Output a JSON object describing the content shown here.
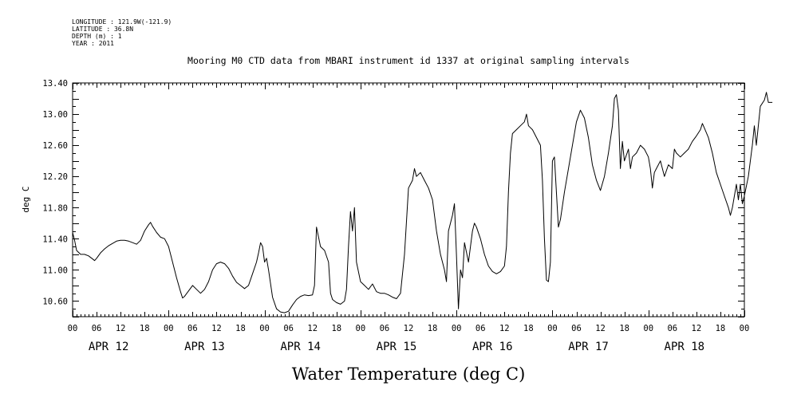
{
  "header": {
    "longitude": "LONGITUDE : 121.9W(-121.9)",
    "latitude": "LATITUDE : 36.8N",
    "depth": "DEPTH (m) : 1",
    "year": "YEAR : 2011"
  },
  "chart_data": {
    "type": "line",
    "title": "Mooring M0 CTD data from MBARI instrument id 1337 at original sampling intervals",
    "xlabel": "Water Temperature (deg C)",
    "ylabel": "deg C",
    "ylim": [
      10.4,
      13.4
    ],
    "yticks": [
      "10.60",
      "11.00",
      "11.40",
      "11.80",
      "12.20",
      "12.60",
      "13.00",
      "13.40"
    ],
    "x_units": "hours since 2011-04-12 00:00",
    "xlim": [
      0,
      168
    ],
    "x_tick_labels": [
      "00",
      "06",
      "12",
      "18",
      "00",
      "06",
      "12",
      "18",
      "00",
      "06",
      "12",
      "18",
      "00",
      "06",
      "12",
      "18",
      "00",
      "06",
      "12",
      "18",
      "00",
      "06",
      "12",
      "18",
      "00",
      "06",
      "12",
      "18",
      "00"
    ],
    "day_labels": [
      "APR 12",
      "APR 13",
      "APR 14",
      "APR 15",
      "APR 16",
      "APR 17",
      "APR 18"
    ],
    "grid": false,
    "series": [
      {
        "color": "#000000",
        "points": [
          [
            0,
            11.48
          ],
          [
            0.5,
            11.38
          ],
          [
            1,
            11.25
          ],
          [
            2,
            11.2
          ],
          [
            3,
            11.2
          ],
          [
            4,
            11.18
          ],
          [
            5,
            11.14
          ],
          [
            5.5,
            11.12
          ],
          [
            6,
            11.15
          ],
          [
            7,
            11.22
          ],
          [
            8,
            11.27
          ],
          [
            9,
            11.31
          ],
          [
            10,
            11.34
          ],
          [
            11,
            11.37
          ],
          [
            12,
            11.38
          ],
          [
            13,
            11.38
          ],
          [
            14,
            11.37
          ],
          [
            15,
            11.35
          ],
          [
            16,
            11.33
          ],
          [
            17,
            11.38
          ],
          [
            18,
            11.5
          ],
          [
            19,
            11.58
          ],
          [
            19.5,
            11.61
          ],
          [
            20,
            11.56
          ],
          [
            21,
            11.48
          ],
          [
            22,
            11.42
          ],
          [
            23,
            11.4
          ],
          [
            24,
            11.3
          ],
          [
            25,
            11.1
          ],
          [
            26,
            10.9
          ],
          [
            27,
            10.72
          ],
          [
            27.5,
            10.64
          ],
          [
            28,
            10.66
          ],
          [
            29,
            10.73
          ],
          [
            30,
            10.8
          ],
          [
            31,
            10.75
          ],
          [
            32,
            10.7
          ],
          [
            33,
            10.75
          ],
          [
            34,
            10.85
          ],
          [
            35,
            11.0
          ],
          [
            36,
            11.08
          ],
          [
            37,
            11.1
          ],
          [
            38,
            11.08
          ],
          [
            39,
            11.02
          ],
          [
            40,
            10.92
          ],
          [
            41,
            10.84
          ],
          [
            42,
            10.8
          ],
          [
            43,
            10.76
          ],
          [
            44,
            10.8
          ],
          [
            45,
            10.95
          ],
          [
            46,
            11.1
          ],
          [
            46.5,
            11.22
          ],
          [
            47,
            11.35
          ],
          [
            47.5,
            11.3
          ],
          [
            48,
            11.1
          ],
          [
            48.5,
            11.15
          ],
          [
            49,
            11.0
          ],
          [
            50,
            10.65
          ],
          [
            51,
            10.5
          ],
          [
            52,
            10.46
          ],
          [
            53,
            10.45
          ],
          [
            54,
            10.47
          ],
          [
            55,
            10.55
          ],
          [
            56,
            10.62
          ],
          [
            57,
            10.66
          ],
          [
            58,
            10.68
          ],
          [
            59,
            10.67
          ],
          [
            60,
            10.68
          ],
          [
            60.5,
            10.8
          ],
          [
            61,
            11.55
          ],
          [
            62,
            11.3
          ],
          [
            63,
            11.25
          ],
          [
            64,
            11.1
          ],
          [
            64.5,
            10.7
          ],
          [
            65,
            10.62
          ],
          [
            66,
            10.58
          ],
          [
            67,
            10.56
          ],
          [
            68,
            10.6
          ],
          [
            68.5,
            10.75
          ],
          [
            69,
            11.3
          ],
          [
            69.5,
            11.75
          ],
          [
            70,
            11.5
          ],
          [
            70.5,
            11.8
          ],
          [
            71,
            11.1
          ],
          [
            72,
            10.85
          ],
          [
            73,
            10.8
          ],
          [
            74,
            10.75
          ],
          [
            75,
            10.82
          ],
          [
            76,
            10.72
          ],
          [
            77,
            10.7
          ],
          [
            78,
            10.7
          ],
          [
            79,
            10.68
          ],
          [
            80,
            10.65
          ],
          [
            81,
            10.63
          ],
          [
            82,
            10.7
          ],
          [
            83,
            11.2
          ],
          [
            84,
            12.05
          ],
          [
            85,
            12.15
          ],
          [
            85.5,
            12.3
          ],
          [
            86,
            12.2
          ],
          [
            87,
            12.25
          ],
          [
            88,
            12.15
          ],
          [
            89,
            12.05
          ],
          [
            90,
            11.9
          ],
          [
            91,
            11.5
          ],
          [
            92,
            11.2
          ],
          [
            93,
            11.0
          ],
          [
            93.5,
            10.85
          ],
          [
            94,
            11.5
          ],
          [
            95,
            11.7
          ],
          [
            95.5,
            11.85
          ],
          [
            96,
            11.2
          ],
          [
            96.5,
            10.5
          ],
          [
            97,
            11.0
          ],
          [
            97.5,
            10.9
          ],
          [
            98,
            11.35
          ],
          [
            99,
            11.1
          ],
          [
            100,
            11.5
          ],
          [
            100.5,
            11.6
          ],
          [
            101,
            11.55
          ],
          [
            102,
            11.4
          ],
          [
            103,
            11.2
          ],
          [
            104,
            11.05
          ],
          [
            105,
            10.98
          ],
          [
            106,
            10.95
          ],
          [
            107,
            10.98
          ],
          [
            108,
            11.05
          ],
          [
            108.5,
            11.3
          ],
          [
            109,
            12.0
          ],
          [
            109.5,
            12.5
          ],
          [
            110,
            12.75
          ],
          [
            111,
            12.8
          ],
          [
            112,
            12.85
          ],
          [
            113,
            12.9
          ],
          [
            113.5,
            13.0
          ],
          [
            114,
            12.85
          ],
          [
            115,
            12.8
          ],
          [
            116,
            12.7
          ],
          [
            117,
            12.6
          ],
          [
            117.5,
            12.15
          ],
          [
            118,
            11.4
          ],
          [
            118.5,
            10.87
          ],
          [
            119,
            10.85
          ],
          [
            119.5,
            11.1
          ],
          [
            120,
            12.4
          ],
          [
            120.5,
            12.45
          ],
          [
            121,
            12.0
          ],
          [
            121.5,
            11.55
          ],
          [
            122,
            11.65
          ],
          [
            123,
            12.0
          ],
          [
            124,
            12.3
          ],
          [
            125,
            12.6
          ],
          [
            126,
            12.9
          ],
          [
            127,
            13.05
          ],
          [
            128,
            12.95
          ],
          [
            129,
            12.7
          ],
          [
            130,
            12.35
          ],
          [
            131,
            12.15
          ],
          [
            132,
            12.02
          ],
          [
            133,
            12.2
          ],
          [
            134,
            12.5
          ],
          [
            135,
            12.85
          ],
          [
            135.5,
            13.2
          ],
          [
            136,
            13.25
          ],
          [
            136.5,
            13.05
          ],
          [
            137,
            12.3
          ],
          [
            137.5,
            12.65
          ],
          [
            138,
            12.4
          ],
          [
            139,
            12.55
          ],
          [
            139.5,
            12.3
          ],
          [
            140,
            12.45
          ],
          [
            141,
            12.5
          ],
          [
            142,
            12.6
          ],
          [
            143,
            12.55
          ],
          [
            144,
            12.45
          ],
          [
            144.5,
            12.3
          ],
          [
            145,
            12.05
          ],
          [
            145.5,
            12.25
          ],
          [
            146,
            12.3
          ],
          [
            147,
            12.4
          ],
          [
            148,
            12.2
          ],
          [
            149,
            12.35
          ],
          [
            150,
            12.3
          ],
          [
            150.5,
            12.55
          ],
          [
            151,
            12.5
          ],
          [
            152,
            12.45
          ],
          [
            153,
            12.5
          ],
          [
            154,
            12.55
          ],
          [
            155,
            12.65
          ],
          [
            156,
            12.72
          ],
          [
            157,
            12.8
          ],
          [
            157.5,
            12.88
          ],
          [
            158,
            12.82
          ],
          [
            159,
            12.7
          ],
          [
            160,
            12.5
          ],
          [
            161,
            12.25
          ],
          [
            162,
            12.1
          ],
          [
            163,
            11.95
          ],
          [
            164,
            11.8
          ],
          [
            164.5,
            11.7
          ],
          [
            165,
            11.8
          ],
          [
            166,
            12.1
          ],
          [
            166.5,
            11.9
          ],
          [
            167,
            12.1
          ],
          [
            167.5,
            11.85
          ],
          [
            168,
            11.95
          ],
          [
            169,
            12.2
          ],
          [
            170,
            12.6
          ],
          [
            170.5,
            12.85
          ],
          [
            171,
            12.6
          ],
          [
            172,
            13.1
          ],
          [
            173,
            13.18
          ],
          [
            173.5,
            13.28
          ],
          [
            174,
            13.15
          ],
          [
            175,
            13.15
          ]
        ]
      }
    ]
  }
}
